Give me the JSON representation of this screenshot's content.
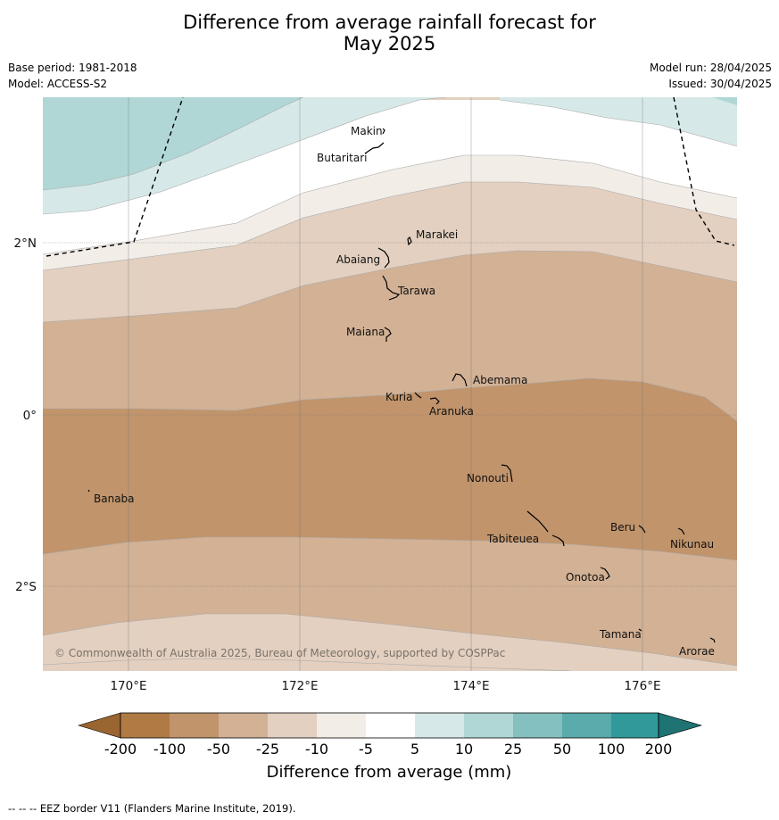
{
  "title_line1": "Difference from average rainfall forecast for",
  "title_line2": "May 2025",
  "base_period": "Base period: 1981-2018",
  "model": "Model: ACCESS-S2",
  "model_run": "Model run: 28/04/2025",
  "issued": "Issued: 30/04/2025",
  "copyright": "© Commonwealth of Australia 2025, Bureau of Meteorology, supported by COSPPac",
  "footer": "--  --  -- EEZ border V11 (Flanders Marine Institute, 2019).",
  "axes": {
    "x_ticks": [
      "170°E",
      "172°E",
      "174°E",
      "176°E"
    ],
    "y_ticks": [
      "2°N",
      "0°",
      "2°S"
    ]
  },
  "islands": {
    "makin": "Makin",
    "butaritari": "Butaritari",
    "marakei": "Marakei",
    "abaiang": "Abaiang",
    "tarawa": "Tarawa",
    "maiana": "Maiana",
    "abemama": "Abemama",
    "kuria": "Kuria",
    "aranuka": "Aranuka",
    "nonouti": "Nonouti",
    "banaba": "Banaba",
    "beru": "Beru",
    "tabiteuea": "Tabiteuea",
    "nikunau": "Nikunau",
    "onotoa": "Onotoa",
    "tamana": "Tamana",
    "arorae": "Arorae"
  },
  "colorbar": {
    "title": "Difference from average (mm)",
    "ticks": [
      "-200",
      "-100",
      "-50",
      "-25",
      "-10",
      "-5",
      "5",
      "10",
      "25",
      "50",
      "100",
      "200"
    ],
    "colors": {
      "lt_neg200": "#9a6531",
      "neg200_neg100": "#b07a45",
      "neg100_neg50": "#c1946b",
      "neg50_neg25": "#d2b195",
      "neg25_neg10": "#e3d0c0",
      "neg10_neg5": "#f2ede7",
      "neg5_5": "#ffffff",
      "5_10": "#d6e9e8",
      "10_25": "#b0d7d6",
      "25_50": "#84c0bf",
      "50_100": "#5aabab",
      "100_200": "#319999",
      "gt_200": "#1f7373"
    }
  }
}
